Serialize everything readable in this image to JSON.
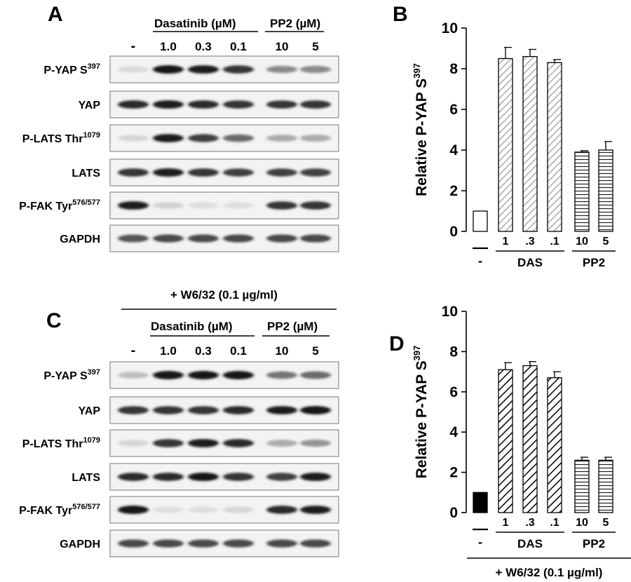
{
  "panels": {
    "A": {
      "letter": "A"
    },
    "B": {
      "letter": "B"
    },
    "C": {
      "letter": "C",
      "treatment": "+ W6/32 (0.1 µg/ml)"
    },
    "D": {
      "letter": "D"
    }
  },
  "blot_header": {
    "dasatinib": "Dasatinib (µM)",
    "pp2": "PP2 (µM)",
    "lanes": [
      "-",
      "1.0",
      "0.3",
      "0.1",
      "10",
      "5"
    ]
  },
  "blot_rows": [
    {
      "name": "P-YAP S",
      "sup": "397"
    },
    {
      "name": "YAP",
      "sup": ""
    },
    {
      "name": "P-LATS Thr",
      "sup": "1079"
    },
    {
      "name": "LATS",
      "sup": ""
    },
    {
      "name": "P-FAK Tyr",
      "sup": "576/577"
    },
    {
      "name": "GAPDH",
      "sup": ""
    }
  ],
  "blot_intensity_A": [
    [
      0.08,
      1.0,
      0.95,
      0.85,
      0.45,
      0.45
    ],
    [
      0.9,
      0.95,
      0.9,
      0.85,
      0.85,
      0.85
    ],
    [
      0.1,
      0.95,
      0.8,
      0.6,
      0.3,
      0.3
    ],
    [
      0.85,
      0.95,
      0.85,
      0.8,
      0.8,
      0.8
    ],
    [
      0.95,
      0.12,
      0.06,
      0.06,
      0.85,
      0.85
    ],
    [
      0.7,
      0.75,
      0.75,
      0.75,
      0.75,
      0.75
    ]
  ],
  "blot_intensity_C": [
    [
      0.2,
      1.0,
      1.0,
      1.0,
      0.55,
      0.6
    ],
    [
      0.85,
      0.85,
      0.85,
      0.9,
      0.95,
      1.0
    ],
    [
      0.1,
      0.85,
      0.95,
      0.9,
      0.3,
      0.4
    ],
    [
      0.9,
      0.9,
      1.0,
      0.85,
      0.8,
      0.95
    ],
    [
      1.0,
      0.06,
      0.06,
      0.1,
      0.9,
      0.95
    ],
    [
      0.75,
      0.75,
      0.75,
      0.75,
      0.75,
      0.75
    ]
  ],
  "chart_data": [
    {
      "type": "bar",
      "panel": "B",
      "categories": [
        "-",
        "1",
        ".3",
        ".1",
        "10",
        "5"
      ],
      "values": [
        1.0,
        8.5,
        8.6,
        8.3,
        3.9,
        4.0
      ],
      "errors": [
        0,
        0.55,
        0.35,
        0.15,
        0.07,
        0.42
      ],
      "fills": [
        "white",
        "diag-light",
        "diag-light",
        "diag-light",
        "horiz",
        "horiz"
      ],
      "groups": [
        {
          "label": "DAS",
          "from": 1,
          "to": 3
        },
        {
          "label": "PP2",
          "from": 4,
          "to": 5
        }
      ],
      "ylabel": "Relative P-YAP S",
      "ylabel_sup": "397",
      "ylim": [
        0,
        10
      ],
      "yticks": [
        "0",
        "2",
        "4",
        "6",
        "8",
        "10"
      ]
    },
    {
      "type": "bar",
      "panel": "D",
      "categories": [
        "-",
        "1",
        ".3",
        ".1",
        "10",
        "5"
      ],
      "values": [
        1.0,
        7.1,
        7.3,
        6.7,
        2.6,
        2.6
      ],
      "errors": [
        0,
        0.35,
        0.2,
        0.3,
        0.15,
        0.15
      ],
      "fills": [
        "black",
        "diag-dark",
        "diag-dark",
        "diag-dark",
        "horiz",
        "horiz"
      ],
      "groups": [
        {
          "label": "DAS",
          "from": 1,
          "to": 3
        },
        {
          "label": "PP2",
          "from": 4,
          "to": 5
        }
      ],
      "ylabel": "Relative P-YAP S",
      "ylabel_sup": "397",
      "ylim": [
        0,
        10
      ],
      "yticks": [
        "0",
        "2",
        "4",
        "6",
        "8",
        "10"
      ],
      "treatment": "+ W6/32 (0.1 µg/ml)"
    }
  ]
}
